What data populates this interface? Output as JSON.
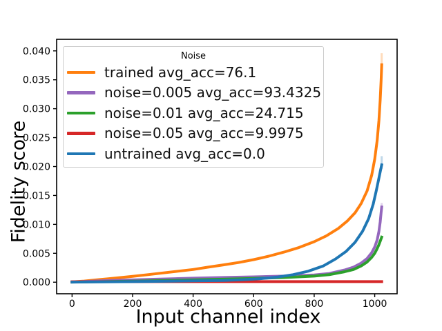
{
  "chart_data": {
    "type": "line",
    "title": "",
    "xlabel": "Input channel index",
    "ylabel": "Fidelity score",
    "xlim": [
      -51,
      1074
    ],
    "ylim": [
      -0.002,
      0.042
    ],
    "grid": false,
    "background_color": "#ffffff",
    "text_color": "#000000",
    "legend": {
      "title": "Noise",
      "position": "upper left",
      "border_color": "#cccccc"
    },
    "xticks": {
      "values": [
        0,
        200,
        400,
        600,
        800,
        1000
      ],
      "labels": [
        "0",
        "200",
        "400",
        "600",
        "800",
        "1000"
      ]
    },
    "yticks": {
      "values": [
        0.0,
        0.005,
        0.01,
        0.015,
        0.02,
        0.025,
        0.03,
        0.035,
        0.04
      ],
      "labels": [
        "0.000",
        "0.005",
        "0.010",
        "0.015",
        "0.020",
        "0.025",
        "0.030",
        "0.035",
        "0.040"
      ]
    },
    "series": [
      {
        "name": "trained avg_acc=76.1",
        "color": "#ff7f0e",
        "points": [
          [
            0,
            5e-05
          ],
          [
            40,
            0.0002
          ],
          [
            80,
            0.0004
          ],
          [
            120,
            0.0006
          ],
          [
            160,
            0.0008
          ],
          [
            200,
            0.001
          ],
          [
            250,
            0.0013
          ],
          [
            300,
            0.0016
          ],
          [
            350,
            0.0019
          ],
          [
            400,
            0.0022
          ],
          [
            450,
            0.0026
          ],
          [
            500,
            0.003
          ],
          [
            550,
            0.0034
          ],
          [
            600,
            0.0039
          ],
          [
            650,
            0.0045
          ],
          [
            700,
            0.0052
          ],
          [
            750,
            0.006
          ],
          [
            800,
            0.007
          ],
          [
            840,
            0.008
          ],
          [
            880,
            0.0093
          ],
          [
            910,
            0.0106
          ],
          [
            935,
            0.012
          ],
          [
            955,
            0.0136
          ],
          [
            975,
            0.0158
          ],
          [
            990,
            0.0185
          ],
          [
            1000,
            0.0213
          ],
          [
            1008,
            0.0245
          ],
          [
            1014,
            0.028
          ],
          [
            1018,
            0.0315
          ],
          [
            1021,
            0.0348
          ],
          [
            1023,
            0.0376
          ]
        ],
        "tip_band": {
          "x": 1023,
          "y0": 0.0363,
          "y1": 0.0396
        }
      },
      {
        "name": "noise=0.005 avg_acc=93.4325",
        "color": "#9467bd",
        "points": [
          [
            0,
            4e-05
          ],
          [
            50,
            0.00015
          ],
          [
            100,
            0.00025
          ],
          [
            200,
            0.0004
          ],
          [
            300,
            0.00055
          ],
          [
            400,
            0.0007
          ],
          [
            500,
            0.00082
          ],
          [
            600,
            0.00092
          ],
          [
            700,
            0.00105
          ],
          [
            750,
            0.00115
          ],
          [
            800,
            0.00125
          ],
          [
            850,
            0.0015
          ],
          [
            900,
            0.0021
          ],
          [
            930,
            0.0026
          ],
          [
            955,
            0.0033
          ],
          [
            975,
            0.0041
          ],
          [
            990,
            0.0051
          ],
          [
            1000,
            0.0061
          ],
          [
            1008,
            0.0073
          ],
          [
            1014,
            0.0088
          ],
          [
            1018,
            0.0104
          ],
          [
            1021,
            0.012
          ],
          [
            1023,
            0.013
          ]
        ],
        "tip_band": {
          "x": 1023,
          "y0": 0.0124,
          "y1": 0.0137
        }
      },
      {
        "name": "noise=0.01 avg_acc=24.715",
        "color": "#2ca02c",
        "points": [
          [
            0,
            2e-05
          ],
          [
            100,
            0.0001
          ],
          [
            200,
            0.00018
          ],
          [
            300,
            0.00028
          ],
          [
            400,
            0.0004
          ],
          [
            500,
            0.00052
          ],
          [
            600,
            0.00066
          ],
          [
            700,
            0.0008
          ],
          [
            800,
            0.00105
          ],
          [
            850,
            0.0013
          ],
          [
            900,
            0.0018
          ],
          [
            930,
            0.0022
          ],
          [
            955,
            0.0028
          ],
          [
            975,
            0.0035
          ],
          [
            990,
            0.0043
          ],
          [
            1000,
            0.005
          ],
          [
            1008,
            0.0058
          ],
          [
            1014,
            0.0065
          ],
          [
            1019,
            0.0072
          ],
          [
            1023,
            0.0078
          ]
        ],
        "tip_band": null
      },
      {
        "name": "noise=0.05 avg_acc=9.9975",
        "color": "#d62728",
        "points": [
          [
            0,
            8e-05
          ],
          [
            200,
            0.0001
          ],
          [
            400,
            0.0001
          ],
          [
            600,
            0.0001
          ],
          [
            800,
            0.0001
          ],
          [
            1000,
            0.0001
          ],
          [
            1023,
            0.0001
          ]
        ],
        "tip_band": null
      },
      {
        "name": "untrained avg_acc=0.0",
        "color": "#1f77b4",
        "points": [
          [
            0,
            2e-05
          ],
          [
            100,
            6e-05
          ],
          [
            200,
            0.0001
          ],
          [
            300,
            0.00016
          ],
          [
            400,
            0.00024
          ],
          [
            500,
            0.0003
          ],
          [
            560,
            0.00042
          ],
          [
            620,
            0.0006
          ],
          [
            680,
            0.0009
          ],
          [
            730,
            0.0013
          ],
          [
            780,
            0.0019
          ],
          [
            830,
            0.0028
          ],
          [
            870,
            0.004
          ],
          [
            905,
            0.0053
          ],
          [
            935,
            0.0069
          ],
          [
            960,
            0.0088
          ],
          [
            980,
            0.011
          ],
          [
            995,
            0.0135
          ],
          [
            1005,
            0.0158
          ],
          [
            1013,
            0.0178
          ],
          [
            1019,
            0.0193
          ],
          [
            1023,
            0.0203
          ]
        ],
        "tip_band": {
          "x": 1023,
          "y0": 0.0196,
          "y1": 0.0218
        }
      }
    ]
  }
}
